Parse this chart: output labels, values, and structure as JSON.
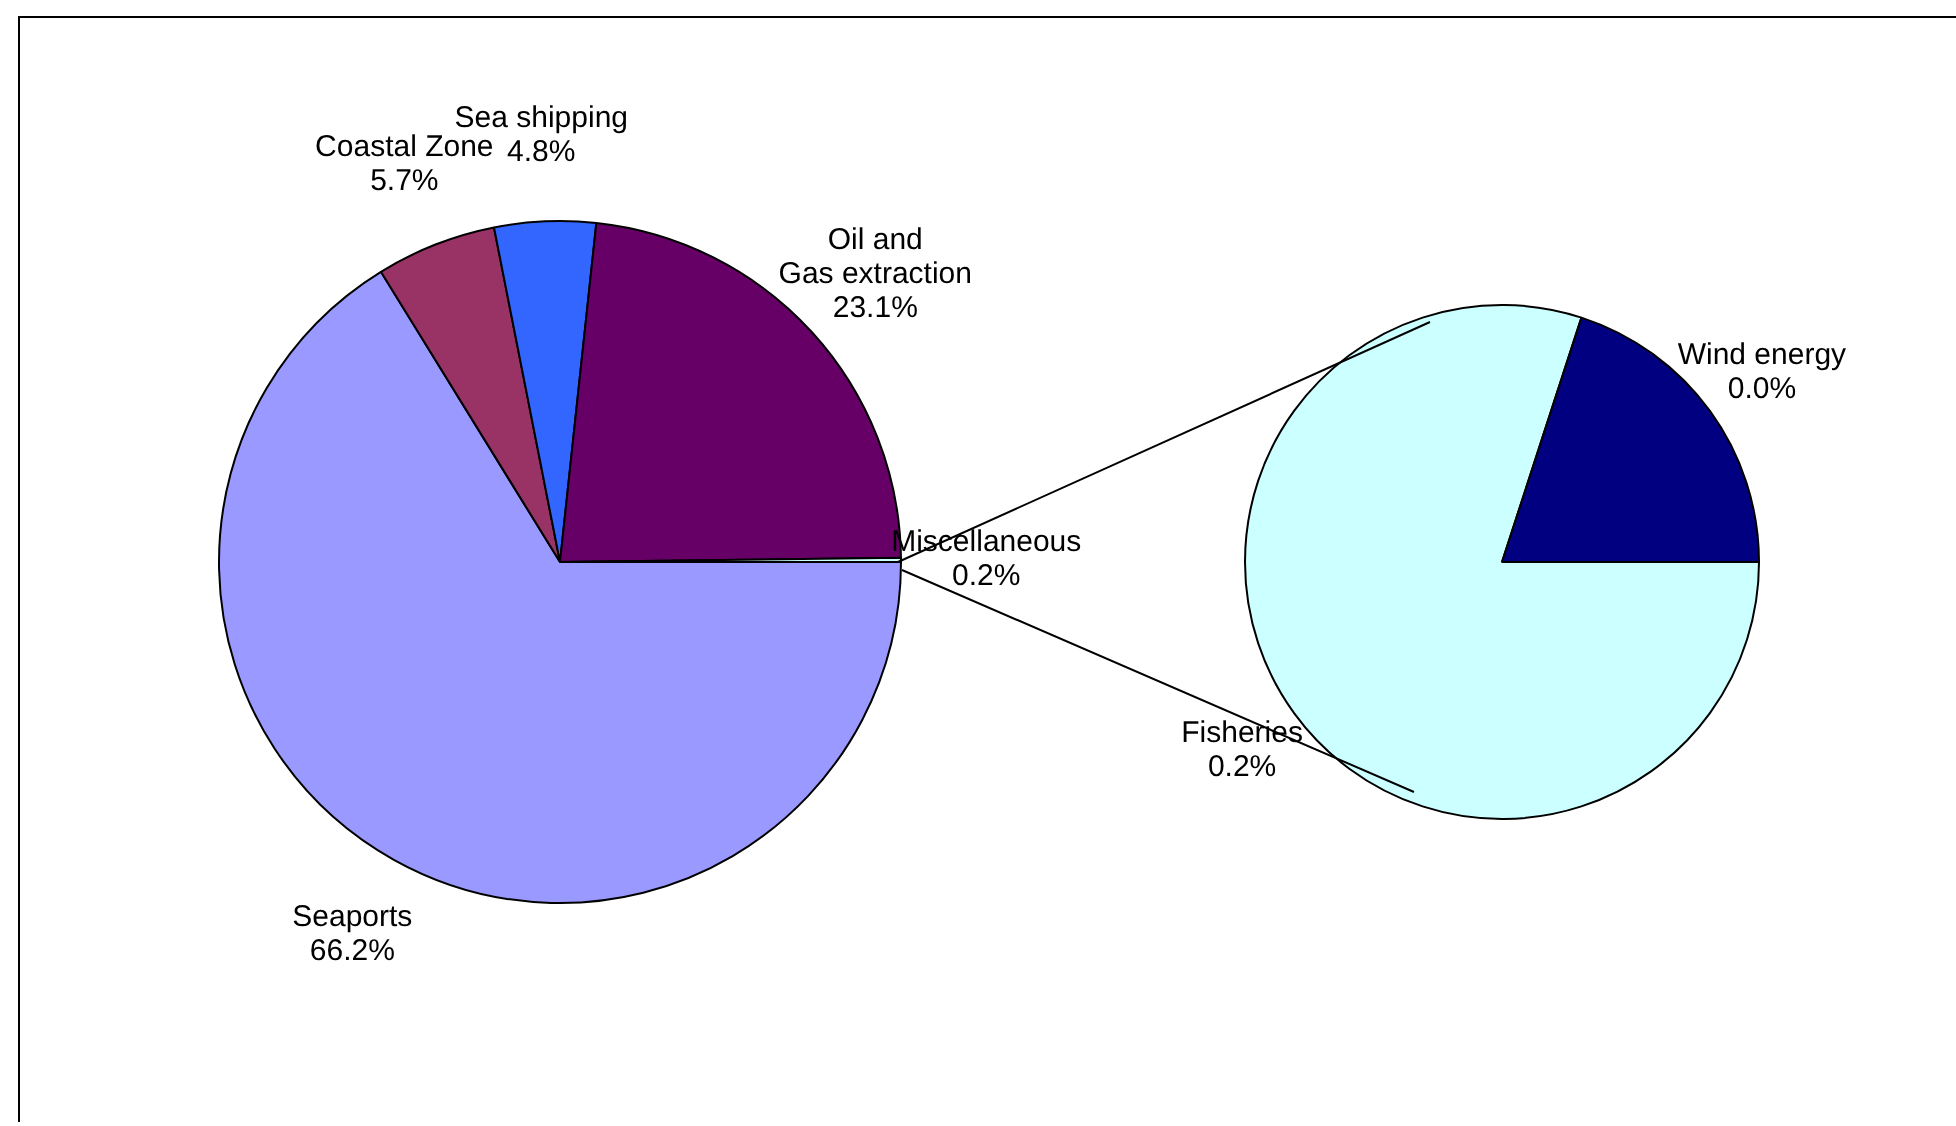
{
  "chart_data": [
    {
      "type": "pie",
      "categories": [
        "Seaports",
        "Coastal Zone",
        "Sea shipping",
        "Oil and Gas extraction",
        "Miscellaneous"
      ],
      "values": [
        66.2,
        5.7,
        4.8,
        23.1,
        0.2
      ],
      "value_labels": [
        "66.2%",
        "5.7%",
        "4.8%",
        "23.1%",
        "0.2%"
      ],
      "colors": [
        "#9999ff",
        "#993366",
        "#3366ff",
        "#660066",
        "#ccffff"
      ]
    },
    {
      "type": "pie",
      "categories": [
        "Fisheries",
        "Wind energy"
      ],
      "values": [
        0.16,
        0.04
      ],
      "value_labels": [
        "0.2%",
        "0.0%"
      ],
      "colors": [
        "#ccffff",
        "#000080"
      ]
    }
  ]
}
